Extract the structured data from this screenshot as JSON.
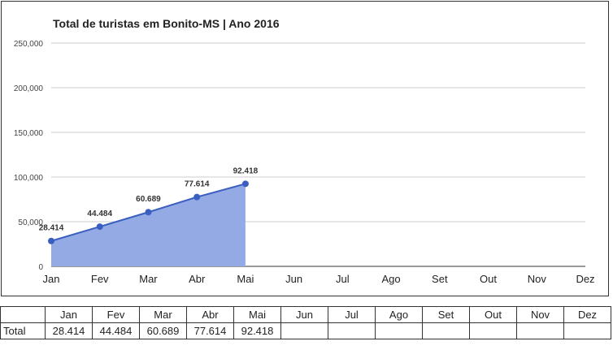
{
  "chart_data": {
    "type": "area",
    "title": "Total de turistas em Bonito-MS | Ano 2016",
    "categories": [
      "Jan",
      "Fev",
      "Mar",
      "Abr",
      "Mai",
      "Jun",
      "Jul",
      "Ago",
      "Set",
      "Out",
      "Nov",
      "Dez"
    ],
    "series": [
      {
        "values": [
          28414,
          44484,
          60689,
          77614,
          92418,
          null,
          null,
          null,
          null,
          null,
          null,
          null
        ]
      }
    ],
    "data_labels": [
      "28.414",
      "44.484",
      "60.689",
      "77.614",
      "92.418"
    ],
    "ylim": [
      0,
      250000
    ],
    "yticks": [
      0,
      50000,
      100000,
      150000,
      200000,
      250000
    ],
    "ytick_labels": [
      "0",
      "50,000",
      "100,000",
      "150,000",
      "200,000",
      "250,000"
    ],
    "grid": true,
    "legend": "none",
    "colors": {
      "line": "#3b5fc0",
      "fill": "#93aae4",
      "grid": "#cccccc"
    }
  },
  "table": {
    "corner": "",
    "headers": [
      "Jan",
      "Fev",
      "Mar",
      "Abr",
      "Mai",
      "Jun",
      "Jul",
      "Ago",
      "Set",
      "Out",
      "Nov",
      "Dez"
    ],
    "row_label": "Total",
    "cells": [
      "28.414",
      "44.484",
      "60.689",
      "77.614",
      "92.418",
      "",
      "",
      "",
      "",
      "",
      "",
      ""
    ]
  }
}
